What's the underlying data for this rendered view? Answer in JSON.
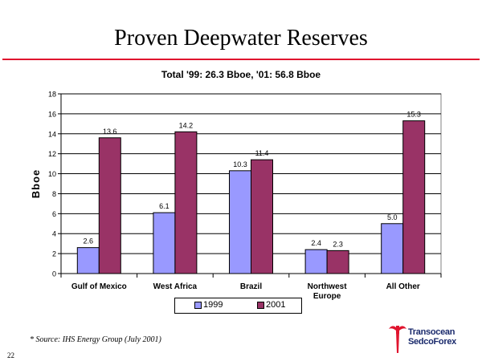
{
  "slide": {
    "title": "Proven Deepwater Reserves",
    "source_note": "* Source: IHS Energy Group (July 2001)",
    "page_number": "22",
    "logo": {
      "line1": "Transocean",
      "line2": "SedcoForex",
      "icon": "transocean-logo-icon"
    },
    "accent_color": "#e0142e"
  },
  "chart_data": {
    "type": "bar",
    "title": "Total '99: 26.3 Bboe, '01: 56.8 Bboe",
    "xlabel": "",
    "ylabel": "Bboe",
    "ylim": [
      0,
      18
    ],
    "yticks": [
      0,
      2,
      4,
      6,
      8,
      10,
      12,
      14,
      16,
      18
    ],
    "grid": true,
    "legend_position": "bottom",
    "categories": [
      "Gulf of Mexico",
      "West Africa",
      "Brazil",
      "Northwest Europe",
      "All Other"
    ],
    "category_lines": [
      [
        "Gulf of Mexico"
      ],
      [
        "West Africa"
      ],
      [
        "Brazil"
      ],
      [
        "Northwest",
        "Europe"
      ],
      [
        "All Other"
      ]
    ],
    "series": [
      {
        "name": "1999",
        "color": "#9999ff",
        "values": [
          2.6,
          6.1,
          10.3,
          2.4,
          5.0
        ],
        "labels": [
          "2.6",
          "6.1",
          "10.3",
          "2.4",
          "5.0"
        ]
      },
      {
        "name": "2001",
        "color": "#993366",
        "values": [
          13.6,
          14.2,
          11.4,
          2.3,
          15.3
        ],
        "labels": [
          "13.6",
          "14.2",
          "11.4",
          "2.3",
          "15.3"
        ]
      }
    ]
  }
}
